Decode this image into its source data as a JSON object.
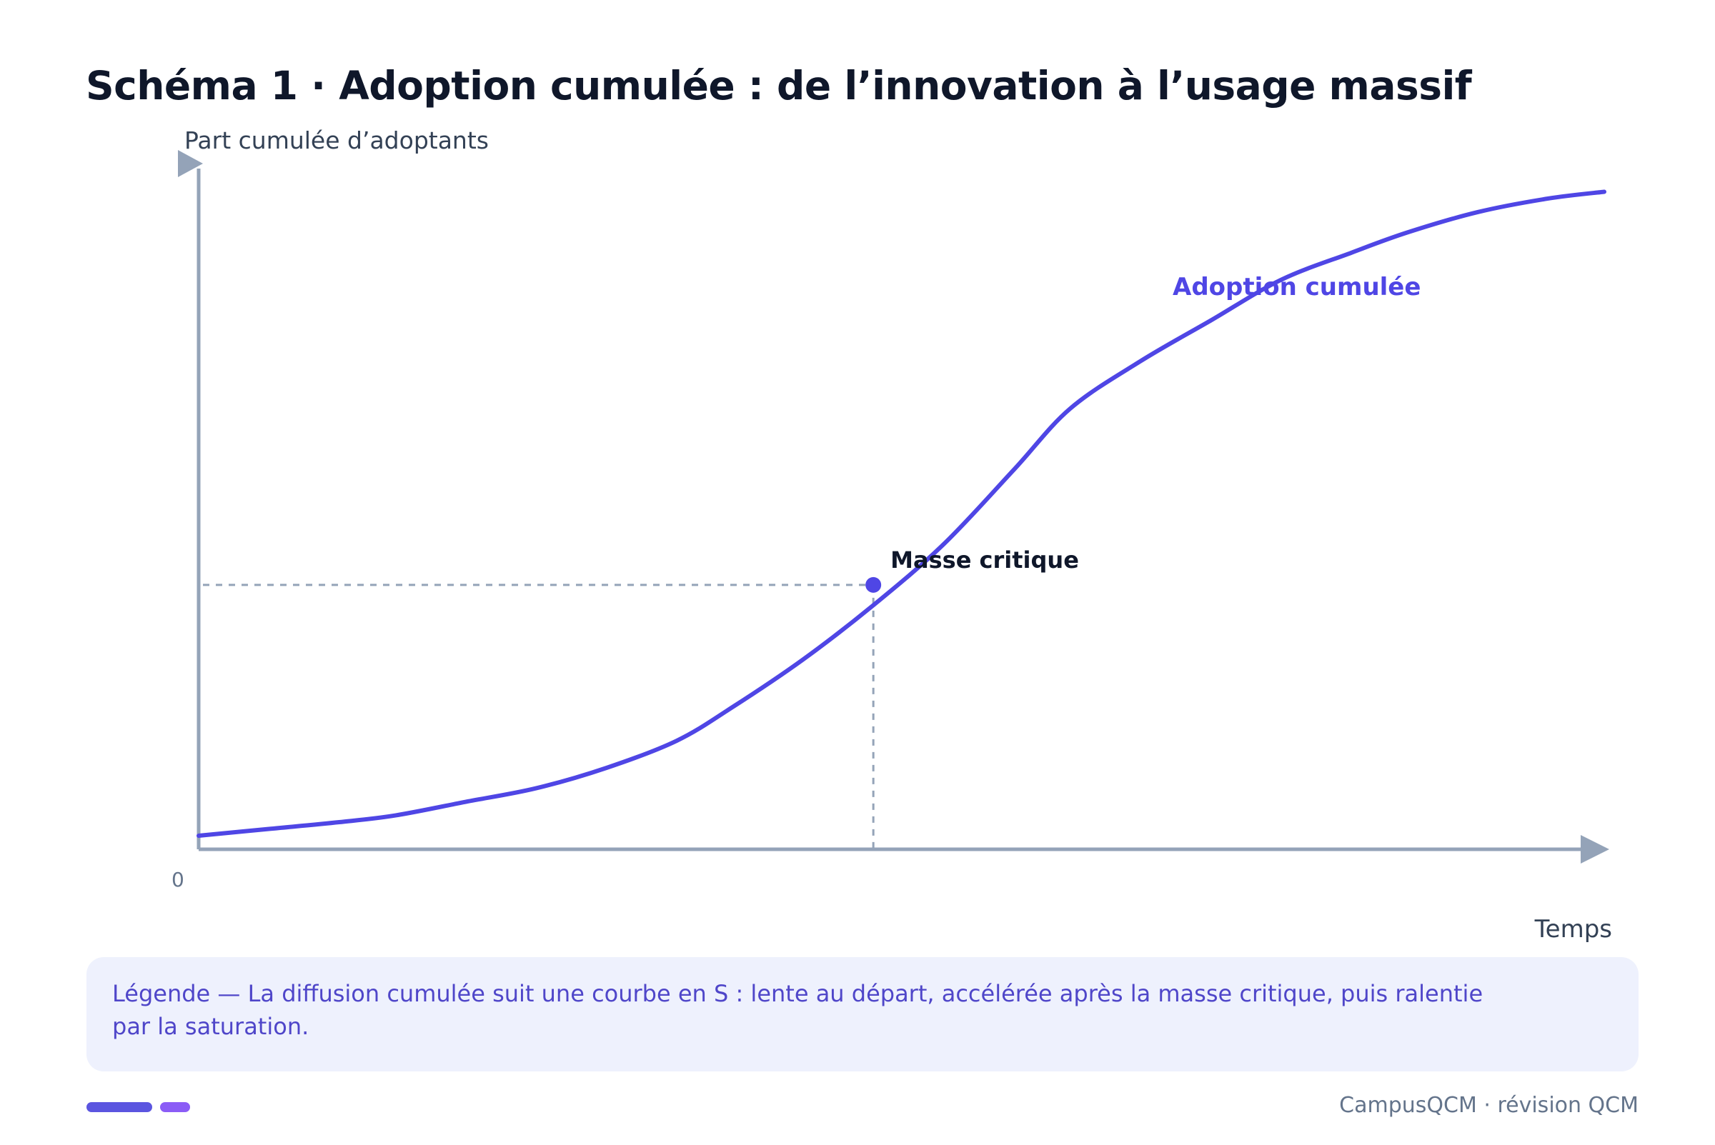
{
  "title": "Schéma 1 · Adoption cumulée : de l’innovation à l’usage massif",
  "legend": {
    "text": "Légende — La diffusion cumulée suit une courbe en S : lente au départ, accélérée après la masse critique, puis ralentie par la saturation."
  },
  "footer": {
    "brand": "CampusQCM · révision QCM"
  },
  "colors": {
    "curve": "#4f46e5",
    "axis": "#94a3b8",
    "guide": "#94a3b8",
    "title": "#0f172a",
    "legend_bg": "#eef1fd",
    "legend_text": "#4f46c9",
    "bar_primary": "#5b55e0",
    "bar_secondary": "#8b5cf6"
  },
  "chart_data": {
    "type": "line",
    "title": "",
    "xlabel": "Temps",
    "ylabel": "Part cumulée d’adoptants",
    "origin_label": "0",
    "xlim": [
      0,
      100
    ],
    "ylim": [
      0,
      100
    ],
    "grid": false,
    "series": [
      {
        "name": "Adoption cumulée",
        "x": [
          0,
          5,
          10,
          14,
          19,
          24,
          29,
          34,
          38,
          43,
          48,
          53,
          58,
          62,
          67,
          72,
          77,
          82,
          86,
          91,
          96,
          100
        ],
        "y": [
          2,
          3,
          4,
          5,
          7,
          9,
          12,
          16,
          21,
          28,
          36,
          45,
          56,
          65,
          72,
          78,
          84,
          88,
          91,
          94,
          96,
          97
        ]
      }
    ],
    "annotations": [
      {
        "label": "Masse critique",
        "x": 48,
        "y": 39
      }
    ]
  }
}
